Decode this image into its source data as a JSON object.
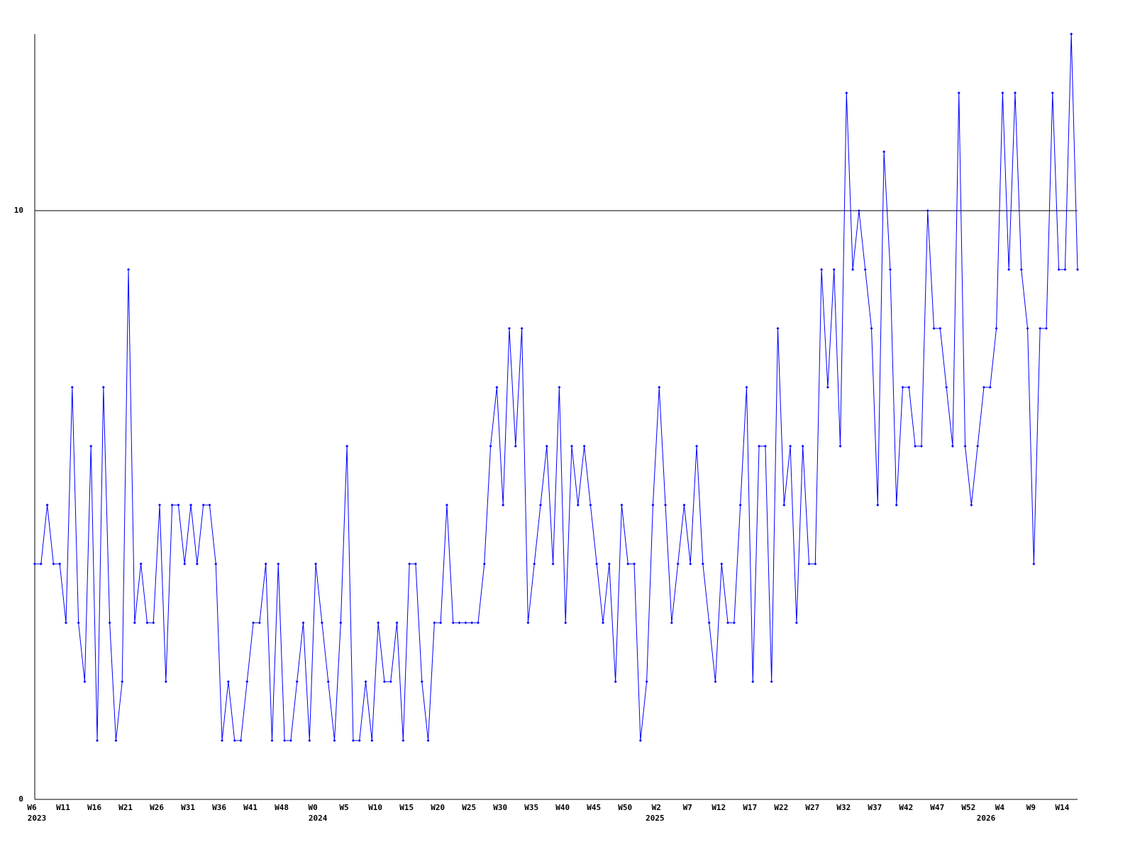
{
  "chart_data": {
    "type": "line",
    "categories": [
      "W6",
      null,
      null,
      null,
      null,
      "W11",
      null,
      null,
      null,
      null,
      "W16",
      null,
      null,
      null,
      null,
      "W21",
      null,
      null,
      null,
      null,
      "W26",
      null,
      null,
      null,
      null,
      "W31",
      null,
      null,
      null,
      null,
      "W36",
      null,
      null,
      null,
      null,
      "W41",
      null,
      null,
      null,
      null,
      "W48",
      null,
      null,
      null,
      null,
      "W0",
      null,
      null,
      null,
      null,
      "W5",
      null,
      null,
      null,
      null,
      "W10",
      null,
      null,
      null,
      null,
      "W15",
      null,
      null,
      null,
      null,
      "W20",
      null,
      null,
      null,
      null,
      "W25",
      null,
      null,
      null,
      null,
      "W30",
      null,
      null,
      null,
      null,
      "W35",
      null,
      null,
      null,
      null,
      "W40",
      null,
      null,
      null,
      null,
      "W45",
      null,
      null,
      null,
      null,
      "W50",
      null,
      null,
      null,
      null,
      "W2",
      null,
      null,
      null,
      null,
      "W7",
      null,
      null,
      null,
      null,
      "W12",
      null,
      null,
      null,
      null,
      "W17",
      null,
      null,
      null,
      null,
      "W22",
      null,
      null,
      null,
      null,
      "W27",
      null,
      null,
      null,
      null,
      "W32",
      null,
      null,
      null,
      null,
      "W37",
      null,
      null,
      null,
      null,
      "W42",
      null,
      null,
      null,
      null,
      "W47",
      null,
      null,
      null,
      null,
      "W52",
      null,
      null,
      null,
      null,
      "W4",
      null,
      null,
      null,
      null,
      "W9",
      null,
      null,
      null,
      null,
      "W14",
      null,
      null
    ],
    "x_groups": [
      {
        "label": "2023",
        "start": 0
      },
      {
        "label": "2024",
        "start": 45
      },
      {
        "label": "2025",
        "start": 99
      },
      {
        "label": "2026",
        "start": 152
      }
    ],
    "series": [
      {
        "color": "#0000ff",
        "values": [
          4,
          4,
          5,
          4,
          4,
          3,
          7,
          3,
          2,
          6,
          1,
          7,
          3,
          1,
          2,
          9,
          3,
          4,
          3,
          3,
          5,
          2,
          5,
          5,
          4,
          5,
          4,
          5,
          5,
          4,
          1,
          2,
          1,
          1,
          2,
          3,
          3,
          4,
          1,
          4,
          1,
          1,
          2,
          3,
          1,
          4,
          3,
          2,
          1,
          3,
          6,
          1,
          1,
          2,
          1,
          3,
          2,
          2,
          3,
          1,
          4,
          4,
          2,
          1,
          3,
          3,
          5,
          3,
          3,
          3,
          3,
          3,
          4,
          6,
          7,
          5,
          8,
          6,
          8,
          3,
          4,
          5,
          6,
          4,
          7,
          3,
          6,
          5,
          6,
          5,
          4,
          3,
          4,
          2,
          5,
          4,
          4,
          1,
          2,
          5,
          7,
          5,
          3,
          4,
          5,
          4,
          6,
          4,
          3,
          2,
          4,
          3,
          3,
          5,
          7,
          2,
          6,
          6,
          2,
          8,
          5,
          6,
          3,
          6,
          4,
          4,
          9,
          7,
          9,
          6,
          12,
          9,
          10,
          9,
          8,
          5,
          11,
          9,
          5,
          7,
          7,
          6,
          6,
          10,
          8,
          8,
          7,
          6,
          12,
          6,
          5,
          6,
          7,
          7,
          8,
          12,
          9,
          12,
          9,
          8,
          4,
          8,
          8,
          12,
          9,
          9,
          13,
          9
        ]
      }
    ],
    "ylim": [
      0,
      13
    ],
    "yticks": [
      0,
      10
    ],
    "grid": true
  }
}
